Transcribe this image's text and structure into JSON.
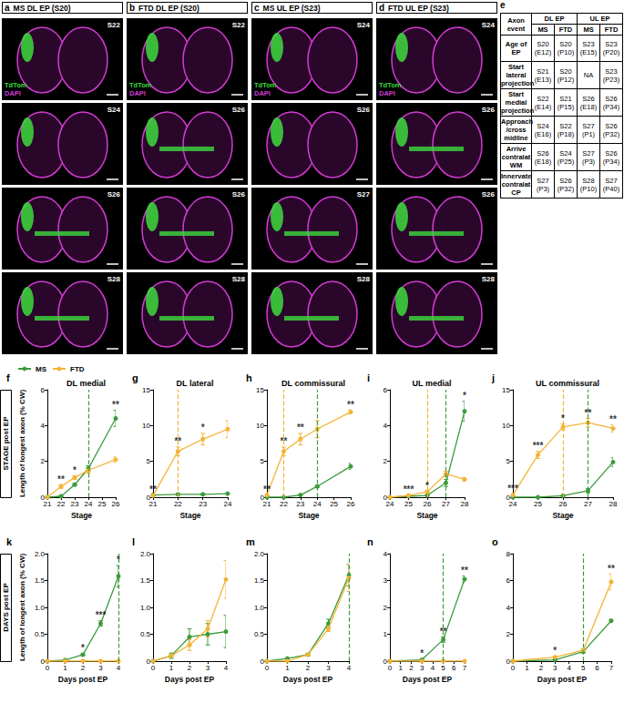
{
  "images": {
    "columns": [
      {
        "label": "a",
        "title": "MS DL EP (S20)",
        "stages": [
          "S22",
          "S24",
          "S26",
          "S28"
        ]
      },
      {
        "label": "b",
        "title": "FTD DL EP (S20)",
        "stages": [
          "S22",
          "S26",
          "S26",
          "S28"
        ]
      },
      {
        "label": "c",
        "title": "MS UL EP (S23)",
        "stages": [
          "S24",
          "S26",
          "S27",
          "S28"
        ]
      },
      {
        "label": "d",
        "title": "FTD UL EP (S23)",
        "stages": [
          "S24",
          "S26",
          "S26",
          "S28"
        ]
      }
    ],
    "channels": [
      {
        "name": "TdTom",
        "color": "#3ddc3d"
      },
      {
        "name": "DAPI",
        "color": "#d23cd2"
      }
    ]
  },
  "table": {
    "label": "e",
    "header": [
      "Axon event",
      "DL EP",
      "UL EP"
    ],
    "subheader": [
      "MS",
      "FTD",
      "MS",
      "FTD"
    ],
    "rows": [
      [
        "Age of EP",
        "S20 (E12)",
        "S20 (P10)",
        "S23 (E15)",
        "S23 (P20)"
      ],
      [
        "Start lateral projection",
        "S21 (E13)",
        "S20 (P12)",
        "NA",
        "S23 (P23)"
      ],
      [
        "Start medial projection",
        "S22 (E14)",
        "S21 (P15)",
        "S26 (E18)",
        "S26 (P34)"
      ],
      [
        "Approach /cross midline",
        "S24 (E16)",
        "S22 (P18)",
        "S27 (P1)",
        "S26 (P32)"
      ],
      [
        "Arrive contralat WM",
        "S26 (E18)",
        "S24 (P25)",
        "S27 (P3)",
        "S26 (P34)"
      ],
      [
        "Innervate contralat CP",
        "S27 (P3)",
        "S26 (P32)",
        "S28 (P10)",
        "S27 (P40)"
      ]
    ]
  },
  "row_labels": [
    "STAGE post EP",
    "DAYS post EP"
  ],
  "chart_data": [
    {
      "label": "f",
      "type": "line",
      "title": "DL medial",
      "xlabel": "Stage",
      "ylabel": "Length of longest axon (% CW)",
      "legend": "top-left",
      "xlim": [
        21,
        26
      ],
      "xticks": [
        21,
        22,
        23,
        24,
        25,
        26
      ],
      "ylim": [
        0,
        6
      ],
      "yticks": [
        0,
        2,
        4,
        6
      ],
      "series": [
        {
          "name": "MS",
          "color": "#3c9b3c",
          "marker": "circle",
          "x": [
            21,
            22,
            23,
            24,
            26
          ],
          "values": [
            0,
            0.05,
            0.7,
            1.6,
            4.4
          ],
          "errors": [
            0,
            0.02,
            0.05,
            0.15,
            0.45
          ]
        },
        {
          "name": "FTD",
          "color": "#f5b335",
          "marker": "circle",
          "x": [
            21,
            22,
            23,
            24,
            26
          ],
          "values": [
            0,
            0.6,
            1.1,
            1.5,
            2.1
          ],
          "errors": [
            0,
            0.1,
            0.1,
            0.15,
            0.15
          ]
        }
      ],
      "vlines": [
        {
          "x": 24,
          "color": "#3c9b3c"
        }
      ],
      "annotations": [
        {
          "x": 22,
          "text": "**"
        },
        {
          "x": 23,
          "text": "*"
        },
        {
          "x": 26,
          "text": "**"
        }
      ]
    },
    {
      "label": "g",
      "type": "line",
      "title": "DL lateral",
      "xlabel": "Stage",
      "xlim": [
        21,
        24
      ],
      "xticks": [
        21,
        22,
        23,
        24
      ],
      "ylim": [
        0,
        15
      ],
      "yticks": [
        0,
        5,
        10,
        15
      ],
      "series": [
        {
          "name": "MS",
          "color": "#3c9b3c",
          "marker": "circle",
          "x": [
            21,
            22,
            23,
            24
          ],
          "values": [
            0.3,
            0.4,
            0.4,
            0.5
          ],
          "errors": [
            0.05,
            0.1,
            0.1,
            0.1
          ]
        },
        {
          "name": "FTD",
          "color": "#f5b335",
          "marker": "circle",
          "x": [
            21,
            22,
            23,
            24
          ],
          "values": [
            0.2,
            6.4,
            8.1,
            9.5
          ],
          "errors": [
            0.05,
            0.6,
            0.8,
            1.2
          ]
        }
      ],
      "vlines": [
        {
          "x": 22,
          "color": "#f5b335"
        }
      ],
      "annotations": [
        {
          "x": 21,
          "text": "**"
        },
        {
          "x": 22,
          "text": "**"
        },
        {
          "x": 23,
          "text": "*"
        }
      ]
    },
    {
      "label": "h",
      "type": "line",
      "title": "DL commissural",
      "xlabel": "Stage",
      "xlim": [
        21,
        26
      ],
      "xticks": [
        21,
        22,
        23,
        24,
        25,
        26
      ],
      "ylim": [
        0,
        15
      ],
      "yticks": [
        0,
        5,
        10,
        15
      ],
      "series": [
        {
          "name": "MS",
          "color": "#3c9b3c",
          "marker": "circle",
          "x": [
            21,
            22,
            23,
            24,
            26
          ],
          "values": [
            0,
            0,
            0.3,
            1.5,
            4.3
          ],
          "errors": [
            0,
            0,
            0.05,
            0.15,
            0.4
          ]
        },
        {
          "name": "FTD",
          "color": "#f5b335",
          "marker": "circle",
          "x": [
            21,
            22,
            23,
            24,
            26
          ],
          "values": [
            0.3,
            6.4,
            8.1,
            9.5,
            11.9
          ],
          "errors": [
            0.05,
            0.6,
            0.8,
            1.2,
            0.3
          ]
        }
      ],
      "vlines": [
        {
          "x": 22,
          "color": "#f5b335"
        },
        {
          "x": 24,
          "color": "#3c9b3c"
        }
      ],
      "annotations": [
        {
          "x": 21,
          "text": "**"
        },
        {
          "x": 22,
          "text": "**"
        },
        {
          "x": 23,
          "text": "**"
        },
        {
          "x": 26,
          "text": "**"
        }
      ]
    },
    {
      "label": "i",
      "type": "line",
      "title": "UL medial",
      "xlabel": "Stage",
      "xlim": [
        24,
        28
      ],
      "xticks": [
        24,
        25,
        26,
        27,
        28
      ],
      "ylim": [
        0,
        6
      ],
      "yticks": [
        0,
        2,
        4,
        6
      ],
      "series": [
        {
          "name": "MS",
          "color": "#3c9b3c",
          "marker": "circle",
          "x": [
            24,
            25,
            26,
            27,
            28
          ],
          "values": [
            0,
            0.05,
            0.1,
            0.8,
            4.8
          ],
          "errors": [
            0,
            0.02,
            0.03,
            0.2,
            0.55
          ]
        },
        {
          "name": "FTD",
          "color": "#f5b335",
          "marker": "circle",
          "x": [
            24,
            25,
            26,
            27,
            28
          ],
          "values": [
            0,
            0.1,
            0.3,
            1.3,
            1.0
          ],
          "errors": [
            0,
            0.03,
            0.05,
            0.15,
            0.1
          ]
        }
      ],
      "vlines": [
        {
          "x": 26,
          "color": "#f5b335"
        },
        {
          "x": 27,
          "color": "#3c9b3c"
        }
      ],
      "annotations": [
        {
          "x": 25,
          "text": "***"
        },
        {
          "x": 26,
          "text": "*"
        },
        {
          "x": 28,
          "text": "*"
        }
      ]
    },
    {
      "label": "j",
      "type": "line",
      "title": "UL commissural",
      "xlabel": "Stage",
      "xlim": [
        24,
        28
      ],
      "xticks": [
        24,
        25,
        26,
        27,
        28
      ],
      "ylim": [
        0,
        15
      ],
      "yticks": [
        0,
        5,
        10,
        15
      ],
      "series": [
        {
          "name": "MS",
          "color": "#3c9b3c",
          "marker": "circle",
          "x": [
            24,
            25,
            26,
            27,
            28
          ],
          "values": [
            0,
            0,
            0.2,
            0.9,
            4.9
          ],
          "errors": [
            0,
            0,
            0.05,
            0.3,
            0.6
          ]
        },
        {
          "name": "FTD",
          "color": "#f5b335",
          "marker": "circle",
          "x": [
            24,
            25,
            26,
            27,
            28
          ],
          "values": [
            0.3,
            5.9,
            9.8,
            10.4,
            9.6
          ],
          "errors": [
            0.1,
            0.5,
            0.4,
            0.6,
            0.5
          ]
        }
      ],
      "vlines": [
        {
          "x": 26,
          "color": "#f5b335"
        },
        {
          "x": 27,
          "color": "#3c9b3c"
        }
      ],
      "annotations": [
        {
          "x": 24,
          "text": "***"
        },
        {
          "x": 25,
          "text": "***"
        },
        {
          "x": 26,
          "text": "*"
        },
        {
          "x": 27,
          "text": "**"
        },
        {
          "x": 28,
          "text": "**"
        }
      ]
    },
    {
      "label": "k",
      "type": "line",
      "xlabel": "Days post EP",
      "ylabel": "Length of longest axon (% CW)",
      "xlim": [
        0,
        4
      ],
      "xticks": [
        0,
        1,
        2,
        3,
        4
      ],
      "ylim": [
        0,
        2
      ],
      "yticks": [
        0,
        0.5,
        {
          "value": 1,
          "label": "1.0"
        },
        1.5,
        {
          "value": 2,
          "label": "2.0"
        }
      ],
      "series": [
        {
          "name": "MS",
          "color": "#3c9b3c",
          "marker": "circle",
          "x": [
            0,
            1,
            2,
            3,
            4
          ],
          "values": [
            0,
            0.02,
            0.12,
            0.7,
            1.58
          ],
          "errors": [
            0,
            0.01,
            0.02,
            0.05,
            0.2
          ]
        },
        {
          "name": "FTD",
          "color": "#f5b335",
          "marker": "circle",
          "x": [
            0,
            1,
            2,
            3,
            4
          ],
          "values": [
            0,
            0,
            0,
            0,
            0
          ],
          "errors": [
            0,
            0,
            0,
            0,
            0
          ]
        }
      ],
      "vlines": [
        {
          "x": 4,
          "color": "#3c9b3c"
        }
      ],
      "annotations": [
        {
          "x": 2,
          "text": "*"
        },
        {
          "x": 3,
          "text": "***"
        },
        {
          "x": 4,
          "text": "*"
        }
      ]
    },
    {
      "label": "l",
      "type": "line",
      "xlabel": "Days post EP",
      "xlim": [
        0,
        4
      ],
      "xticks": [
        0,
        1,
        2,
        3,
        4
      ],
      "ylim": [
        0,
        2
      ],
      "yticks": [
        0,
        0.5,
        {
          "value": 1,
          "label": "1.0"
        },
        1.5,
        {
          "value": 2,
          "label": "2.0"
        }
      ],
      "series": [
        {
          "name": "MS",
          "color": "#3c9b3c",
          "marker": "circle",
          "x": [
            0,
            1,
            2,
            3,
            4
          ],
          "values": [
            0,
            0.1,
            0.45,
            0.5,
            0.55
          ],
          "errors": [
            0,
            0.05,
            0.15,
            0.2,
            0.3
          ]
        },
        {
          "name": "FTD",
          "color": "#f5b335",
          "marker": "circle",
          "x": [
            0,
            1,
            2,
            3,
            4
          ],
          "values": [
            0,
            0.1,
            0.3,
            0.6,
            1.52
          ],
          "errors": [
            0,
            0.03,
            0.1,
            0.15,
            0.35
          ]
        }
      ],
      "vlines": [],
      "annotations": []
    },
    {
      "label": "m",
      "type": "line",
      "xlabel": "Days post EP",
      "xlim": [
        0,
        4
      ],
      "xticks": [
        0,
        1,
        2,
        3,
        4
      ],
      "ylim": [
        0,
        2
      ],
      "yticks": [
        0,
        0.5,
        {
          "value": 1,
          "label": "1.0"
        },
        1.5,
        {
          "value": 2,
          "label": "2.0"
        }
      ],
      "series": [
        {
          "name": "MS",
          "color": "#3c9b3c",
          "marker": "circle",
          "x": [
            0,
            1,
            2,
            3,
            4
          ],
          "values": [
            0,
            0.05,
            0.12,
            0.7,
            1.6
          ],
          "errors": [
            0,
            0.01,
            0.02,
            0.08,
            0.2
          ]
        },
        {
          "name": "FTD",
          "color": "#f5b335",
          "marker": "circle",
          "x": [
            0,
            1,
            2,
            3,
            4
          ],
          "values": [
            0,
            0,
            0.12,
            0.6,
            1.55
          ],
          "errors": [
            0,
            0,
            0.02,
            0.05,
            0.25
          ]
        }
      ],
      "vlines": [
        {
          "x": 4,
          "color": "#3c9b3c"
        }
      ],
      "annotations": []
    },
    {
      "label": "n",
      "type": "line",
      "xlabel": "Days post EP",
      "xlim": [
        0,
        7
      ],
      "xticks": [
        0,
        1,
        2,
        3,
        4,
        5,
        6,
        7
      ],
      "ylim": [
        0,
        4
      ],
      "yticks": [
        0,
        1,
        2,
        3,
        4
      ],
      "series": [
        {
          "name": "MS",
          "color": "#3c9b3c",
          "marker": "circle",
          "x": [
            0,
            3,
            5,
            7
          ],
          "values": [
            0,
            0.05,
            0.8,
            3.05
          ],
          "errors": [
            0,
            0.02,
            0.1,
            0.12
          ]
        },
        {
          "name": "FTD",
          "color": "#f5b335",
          "marker": "circle",
          "x": [
            0,
            3,
            5,
            7
          ],
          "values": [
            0,
            0,
            0,
            0
          ],
          "errors": [
            0,
            0,
            0,
            0
          ]
        }
      ],
      "vlines": [
        {
          "x": 5,
          "color": "#3c9b3c"
        }
      ],
      "annotations": [
        {
          "x": 3,
          "text": "*"
        },
        {
          "x": 5,
          "text": "**"
        },
        {
          "x": 7,
          "text": "**"
        }
      ]
    },
    {
      "label": "o",
      "type": "line",
      "xlabel": "Days post EP",
      "xlim": [
        0,
        7
      ],
      "xticks": [
        0,
        1,
        2,
        3,
        4,
        5,
        6,
        7
      ],
      "ylim": [
        0,
        8
      ],
      "yticks": [
        0,
        2,
        4,
        6,
        8
      ],
      "series": [
        {
          "name": "MS",
          "color": "#3c9b3c",
          "marker": "circle",
          "x": [
            0,
            3,
            5,
            7
          ],
          "values": [
            0,
            0.1,
            0.7,
            3.0
          ],
          "errors": [
            0,
            0.02,
            0.1,
            0.1
          ]
        },
        {
          "name": "FTD",
          "color": "#f5b335",
          "marker": "circle",
          "x": [
            0,
            3,
            5,
            7
          ],
          "values": [
            0,
            0.3,
            0.8,
            5.9
          ],
          "errors": [
            0,
            0.05,
            0.1,
            0.6
          ]
        }
      ],
      "vlines": [
        {
          "x": 5,
          "color": "#3c9b3c"
        }
      ],
      "annotations": [
        {
          "x": 3,
          "text": "*"
        },
        {
          "x": 7,
          "text": "**"
        }
      ]
    }
  ]
}
